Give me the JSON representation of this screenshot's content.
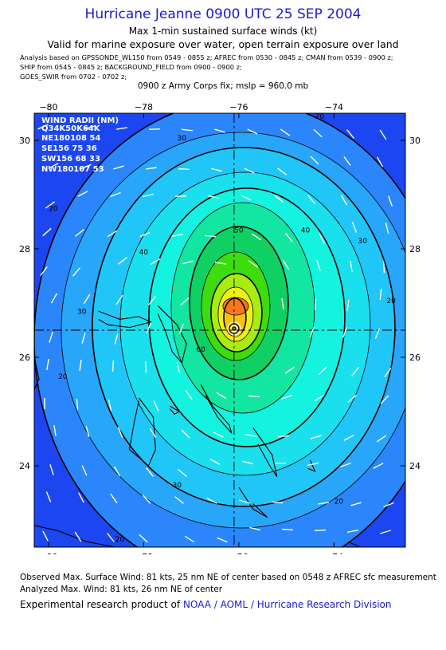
{
  "header": {
    "title": "Hurricane Jeanne 0900 UTC 25 SEP 2004",
    "subtitle1": "Max 1-min sustained surface winds (kt)",
    "subtitle2": "Valid for marine exposure over water, open terrain exposure over land",
    "analysis_lines": [
      "Analysis based on  GPSSONDE_WL150 from 0549 - 0855 z;  AFREC from 0530 - 0845 z;  CMAN from 0539 - 0900 z;",
      "SHIP from 0545 - 0845 z;  BACKGROUND_FIELD from 0900 - 0900 z;",
      "GOES_SWIR from 0702 - 0702 z;"
    ],
    "fix_line": "0900 z Army Corps fix; mslp = 960.0 mb"
  },
  "wind_radii": {
    "title": "WIND RADII (NM)",
    "header": "Q34K50K64K",
    "rows": [
      "NE180108 54",
      "SE156 75 36",
      "SW156 68 33",
      "NW180107 53"
    ]
  },
  "chart_data": {
    "type": "contour",
    "center": {
      "lon": -76.1,
      "lat": 26.5
    },
    "xlim": [
      -80.3,
      -72.5
    ],
    "ylim": [
      22.5,
      30.5
    ],
    "x_ticks": [
      {
        "value": -80,
        "label": "−80"
      },
      {
        "value": -78,
        "label": "−78"
      },
      {
        "value": -76,
        "label": "−76"
      },
      {
        "value": -74,
        "label": "−74"
      }
    ],
    "y_ticks": [
      {
        "value": 30,
        "label": "30"
      },
      {
        "value": 28,
        "label": "28"
      },
      {
        "value": 26,
        "label": "26"
      },
      {
        "value": 24,
        "label": "24"
      }
    ],
    "contour_levels": [
      20,
      25,
      30,
      35,
      40,
      45,
      50,
      55,
      60,
      65,
      70,
      75,
      80
    ],
    "contour_labels": [
      {
        "value": "20",
        "lon": -79.9,
        "lat": 28.7
      },
      {
        "value": "20",
        "lon": -79.7,
        "lat": 25.6
      },
      {
        "value": "20",
        "lon": -78.5,
        "lat": 22.6
      },
      {
        "value": "20",
        "lon": -73.9,
        "lat": 23.3
      },
      {
        "value": "20",
        "lon": -72.8,
        "lat": 27.0
      },
      {
        "value": "20",
        "lon": -74.3,
        "lat": 30.4
      },
      {
        "value": "30",
        "lon": -79.3,
        "lat": 26.8
      },
      {
        "value": "30",
        "lon": -77.3,
        "lat": 23.6
      },
      {
        "value": "30",
        "lon": -73.4,
        "lat": 28.1
      },
      {
        "value": "30",
        "lon": -77.2,
        "lat": 30.0
      },
      {
        "value": "40",
        "lon": -78.0,
        "lat": 27.9
      },
      {
        "value": "40",
        "lon": -74.6,
        "lat": 28.3
      },
      {
        "value": "50",
        "lon": -76.0,
        "lat": 28.3
      },
      {
        "value": "60",
        "lon": -76.8,
        "lat": 26.1
      }
    ],
    "colors": {
      "c0": "#1c46f0",
      "c20": "#2a86fa",
      "c25": "#28a6fa",
      "c30": "#20c6f8",
      "c35": "#1ae0ee",
      "c40": "#14f2e0",
      "c45": "#12e6a0",
      "c50": "#10d064",
      "c55": "#3cdc0e",
      "c60": "#a8ec10",
      "c65": "#f0f010",
      "c70": "#f8c010",
      "c75": "#f87818",
      "c80": "#f8c808"
    }
  },
  "footer": {
    "observed": "Observed Max. Surface Wind: 81 kts, 25 nm NE of center based on 0548 z AFREC sfc measurement",
    "analyzed": "Analyzed Max. Wind: 81 kts, 26 nm NE of center",
    "experimental": "Experimental research product of",
    "org_link": "NOAA / AOML / Hurricane Research Division"
  }
}
